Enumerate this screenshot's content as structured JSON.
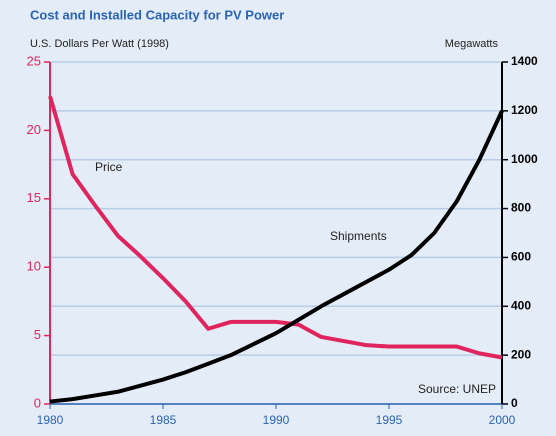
{
  "chart_data": {
    "type": "line",
    "title": "Cost and Installed Capacity for PV Power",
    "y_label": "U.S. Dollars Per Watt (1998)",
    "y2_label": "Megawatts",
    "annotation": "Source: UNEP",
    "x": [
      1980,
      1981,
      1982,
      1983,
      1984,
      1985,
      1986,
      1987,
      1988,
      1989,
      1990,
      1991,
      1992,
      1993,
      1994,
      1995,
      1996,
      1997,
      1998,
      1999,
      2000
    ],
    "xlim": [
      1980,
      2000
    ],
    "xticks": [
      1980,
      1985,
      1990,
      1995,
      2000
    ],
    "ylim": [
      0,
      25
    ],
    "yticks": [
      0,
      5,
      10,
      15,
      20,
      25
    ],
    "y2lim": [
      0,
      1400
    ],
    "y2ticks": [
      0,
      200,
      400,
      600,
      800,
      1000,
      1200,
      1400
    ],
    "grid": true,
    "series": [
      {
        "name": "Price",
        "color": "#e0245e",
        "axis": "y",
        "values": [
          22.5,
          16.8,
          14.5,
          12.3,
          10.8,
          9.2,
          7.5,
          5.5,
          6.0,
          6.0,
          6.0,
          5.8,
          4.9,
          4.6,
          4.3,
          4.2,
          4.2,
          4.2,
          4.2,
          3.7,
          3.4
        ]
      },
      {
        "name": "Shipments",
        "color": "#000000",
        "axis": "y2",
        "values": [
          10,
          20,
          35,
          50,
          75,
          100,
          130,
          165,
          200,
          245,
          290,
          345,
          400,
          450,
          500,
          550,
          610,
          700,
          830,
          1000,
          1200
        ]
      }
    ]
  }
}
